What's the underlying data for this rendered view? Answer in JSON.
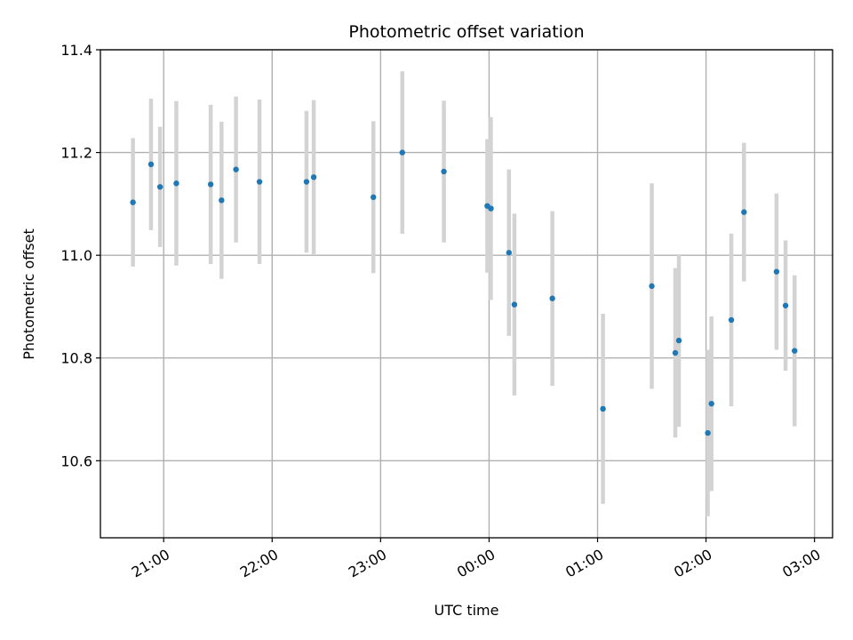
{
  "chart_data": {
    "type": "scatter",
    "title": "Photometric offset variation",
    "xlabel": "UTC time",
    "ylabel": "Photometric offset",
    "x_axis_kind": "time",
    "xlim": [
      "20:25",
      "03:10"
    ],
    "ylim": [
      10.45,
      11.4
    ],
    "grid": true,
    "x_ticks": [
      "21:00",
      "22:00",
      "23:00",
      "00:00",
      "01:00",
      "02:00",
      "03:00"
    ],
    "y_ticks": [
      "10.6",
      "10.8",
      "11.0",
      "11.2",
      "11.4"
    ],
    "marker_color": "#1f77b4",
    "errorbar_color": "#d3d3d3",
    "grid_color": "#b0b0b0",
    "series": [
      {
        "points": [
          {
            "x": "20:43",
            "y": 11.103,
            "yerr": 0.125
          },
          {
            "x": "20:53",
            "y": 11.177,
            "yerr": 0.128
          },
          {
            "x": "20:58",
            "y": 11.133,
            "yerr": 0.117
          },
          {
            "x": "21:07",
            "y": 11.14,
            "yerr": 0.16
          },
          {
            "x": "21:26",
            "y": 11.138,
            "yerr": 0.155
          },
          {
            "x": "21:32",
            "y": 11.107,
            "yerr": 0.153
          },
          {
            "x": "21:40",
            "y": 11.167,
            "yerr": 0.142
          },
          {
            "x": "21:53",
            "y": 11.143,
            "yerr": 0.16
          },
          {
            "x": "22:19",
            "y": 11.143,
            "yerr": 0.138
          },
          {
            "x": "22:23",
            "y": 11.152,
            "yerr": 0.15
          },
          {
            "x": "22:56",
            "y": 11.113,
            "yerr": 0.148
          },
          {
            "x": "23:12",
            "y": 11.2,
            "yerr": 0.158
          },
          {
            "x": "23:35",
            "y": 11.163,
            "yerr": 0.138
          },
          {
            "x": "23:59",
            "y": 11.096,
            "yerr": 0.13
          },
          {
            "x": "00:01",
            "y": 11.091,
            "yerr": 0.178
          },
          {
            "x": "00:11",
            "y": 11.005,
            "yerr": 0.162
          },
          {
            "x": "00:14",
            "y": 10.904,
            "yerr": 0.177
          },
          {
            "x": "00:35",
            "y": 10.916,
            "yerr": 0.17
          },
          {
            "x": "01:03",
            "y": 10.701,
            "yerr": 0.185
          },
          {
            "x": "01:30",
            "y": 10.94,
            "yerr": 0.2
          },
          {
            "x": "01:43",
            "y": 10.81,
            "yerr": 0.165
          },
          {
            "x": "01:45",
            "y": 10.834,
            "yerr": 0.168
          },
          {
            "x": "02:01",
            "y": 10.654,
            "yerr": 0.162
          },
          {
            "x": "02:03",
            "y": 10.711,
            "yerr": 0.17
          },
          {
            "x": "02:14",
            "y": 10.874,
            "yerr": 0.168
          },
          {
            "x": "02:21",
            "y": 11.084,
            "yerr": 0.135
          },
          {
            "x": "02:39",
            "y": 10.968,
            "yerr": 0.152
          },
          {
            "x": "02:44",
            "y": 10.902,
            "yerr": 0.127
          },
          {
            "x": "02:49",
            "y": 10.814,
            "yerr": 0.147
          }
        ]
      }
    ]
  }
}
